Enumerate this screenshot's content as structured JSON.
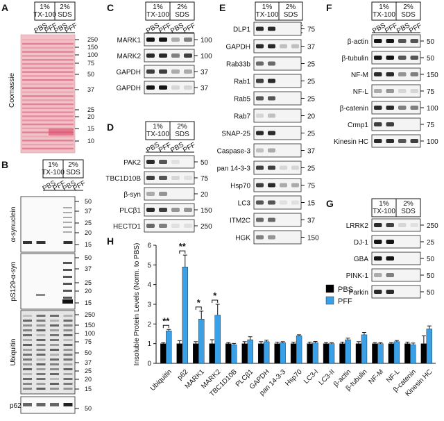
{
  "panels": {
    "A": {
      "letter": "A",
      "treatment_headers": [
        "1%\nTX-100",
        "2%\nSDS"
      ],
      "lanes": [
        "PBS",
        "PFF",
        "PBS",
        "PFF"
      ],
      "stain_label": "Coomassie",
      "markers": [
        "250",
        "150",
        "100",
        "75",
        "50",
        "37",
        "25",
        "20",
        "15",
        "10"
      ]
    },
    "B": {
      "letter": "B",
      "treatment_headers": [
        "1%\nTX-100",
        "2%\nSDS"
      ],
      "lanes": [
        "PBS",
        "PFF",
        "PBS",
        "PFF"
      ],
      "blots": [
        {
          "label": "α-synuclein",
          "markers": [
            "50",
            "37",
            "25",
            "20",
            "15"
          ]
        },
        {
          "label": "pS129-α-syn",
          "markers": [
            "50",
            "37",
            "25",
            "20",
            "15"
          ]
        },
        {
          "label": "Ubiquitin",
          "markers": [
            "250",
            "150",
            "100",
            "75",
            "50",
            "37",
            "25",
            "20",
            "15"
          ]
        },
        {
          "label": "p62",
          "markers": [
            "50"
          ]
        }
      ]
    },
    "C": {
      "letter": "C",
      "treatment_headers": [
        "1%\nTX-100",
        "2%\nSDS"
      ],
      "lanes": [
        "PBS",
        "PFF",
        "PBS",
        "PFF"
      ],
      "blots": [
        {
          "label": "MARK1",
          "marker": "100"
        },
        {
          "label": "MARK2",
          "marker": "100"
        },
        {
          "label": "GAPDH",
          "marker": "37"
        },
        {
          "label": "GAPDH",
          "marker": "37"
        }
      ]
    },
    "D": {
      "letter": "D",
      "treatment_headers": [
        "1%\nTX-100",
        "2%\nSDS"
      ],
      "lanes": [
        "PBS",
        "PFF",
        "PBS",
        "PFF"
      ],
      "blots": [
        {
          "label": "PAK2",
          "marker": "50"
        },
        {
          "label": "TBC1D10B",
          "marker": "75"
        },
        {
          "label": "β-syn",
          "marker": "20"
        },
        {
          "label": "PLCβ1",
          "marker": "150"
        },
        {
          "label": "HECTD1",
          "marker": "250"
        }
      ]
    },
    "E": {
      "letter": "E",
      "treatment_headers": [
        "1%\nTX-100",
        "2%\nSDS"
      ],
      "lanes": [
        "PBS",
        "PFF",
        "PBS",
        "PFF"
      ],
      "blots": [
        {
          "label": "DLP1",
          "marker": "75"
        },
        {
          "label": "GAPDH",
          "marker": "37"
        },
        {
          "label": "Rab33b",
          "marker": "25"
        },
        {
          "label": "Rab1",
          "marker": "25"
        },
        {
          "label": "Rab5",
          "marker": "25"
        },
        {
          "label": "Rab7",
          "marker": "20"
        },
        {
          "label": "SNAP-25",
          "marker": "25"
        },
        {
          "label": "Caspase-3",
          "marker": "37"
        },
        {
          "label": "pan 14-3-3",
          "marker": "25"
        },
        {
          "label": "Hsp70",
          "marker": "75"
        },
        {
          "label": "LC3",
          "marker": "15"
        },
        {
          "label": "ITM2C",
          "marker": "37"
        },
        {
          "label": "HGK",
          "marker": "150"
        }
      ]
    },
    "F": {
      "letter": "F",
      "treatment_headers": [
        "1%\nTX-100",
        "2%\nSDS"
      ],
      "lanes": [
        "PBS",
        "PFF",
        "PBS",
        "PFF"
      ],
      "blots": [
        {
          "label": "β-actin",
          "marker": "50"
        },
        {
          "label": "β-tubulin",
          "marker": "50"
        },
        {
          "label": "NF-M",
          "marker": "150"
        },
        {
          "label": "NF-L",
          "marker": "75"
        },
        {
          "label": "β-catenin",
          "marker": "100"
        },
        {
          "label": "Crmp1",
          "marker": "75"
        },
        {
          "label": "Kinesin HC",
          "marker": "100"
        }
      ]
    },
    "G": {
      "letter": "G",
      "treatment_headers": [
        "1%\nTX-100",
        "2%\nSDS"
      ],
      "lanes": [
        "PBS",
        "PFF",
        "PBS",
        "PFF"
      ],
      "blots": [
        {
          "label": "LRRK2",
          "marker": "250"
        },
        {
          "label": "DJ-1",
          "marker": "25"
        },
        {
          "label": "GBA",
          "marker": "50"
        },
        {
          "label": "PINK-1",
          "marker": "50"
        },
        {
          "label": "Parkin",
          "marker": "50"
        }
      ]
    },
    "H": {
      "letter": "H"
    }
  },
  "chart_data": {
    "type": "bar",
    "ylabel": "Insoluble Protein Levels (Norm. to PBS)",
    "ylim": [
      0,
      6
    ],
    "yticks": [
      0,
      1,
      2,
      3,
      4,
      5,
      6
    ],
    "legend_position": "top-right",
    "categories": [
      "Ubiquitin",
      "p62",
      "MARK1",
      "MARK2",
      "TBC1D10B",
      "PLCβ1",
      "GAPDH",
      "pan 14-3-3",
      "Hsp70",
      "LC3-I",
      "LC3-II",
      "β-actin",
      "β-tubulin",
      "NF-M",
      "NF-L",
      "β-catenin",
      "Kinesin HC"
    ],
    "series": [
      {
        "name": "PBS",
        "color": "#000000",
        "values": [
          1.0,
          1.0,
          1.0,
          1.0,
          1.0,
          1.0,
          1.0,
          1.0,
          1.0,
          1.0,
          1.0,
          1.0,
          1.0,
          1.0,
          1.0,
          1.0,
          1.0
        ],
        "errors": [
          0.05,
          0.15,
          0.1,
          0.2,
          0.06,
          0.1,
          0.1,
          0.08,
          0.08,
          0.08,
          0.06,
          0.08,
          0.1,
          0.06,
          0.06,
          0.08,
          0.4
        ]
      },
      {
        "name": "PFF",
        "color": "#3aa0e8",
        "values": [
          1.65,
          4.9,
          2.25,
          2.45,
          0.95,
          1.2,
          1.1,
          1.05,
          1.4,
          1.05,
          1.0,
          1.2,
          1.45,
          1.0,
          1.1,
          0.95,
          1.75
        ],
        "errors": [
          0.07,
          0.6,
          0.4,
          0.55,
          0.06,
          0.15,
          0.08,
          0.05,
          0.05,
          0.06,
          0.05,
          0.08,
          0.12,
          0.05,
          0.06,
          0.08,
          0.15
        ]
      }
    ],
    "significance": [
      {
        "category": "Ubiquitin",
        "label": "**"
      },
      {
        "category": "p62",
        "label": "**"
      },
      {
        "category": "MARK1",
        "label": "*"
      },
      {
        "category": "MARK2",
        "label": "*"
      }
    ]
  }
}
